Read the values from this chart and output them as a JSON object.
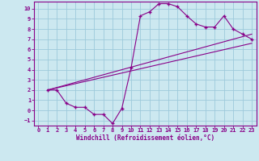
{
  "xlabel": "Windchill (Refroidissement éolien,°C)",
  "bg_color": "#cce8f0",
  "grid_color": "#9dcadb",
  "line_color": "#880088",
  "xlim": [
    -0.5,
    23.5
  ],
  "ylim": [
    -1.5,
    10.7
  ],
  "xticks": [
    0,
    1,
    2,
    3,
    4,
    5,
    6,
    7,
    8,
    9,
    10,
    11,
    12,
    13,
    14,
    15,
    16,
    17,
    18,
    19,
    20,
    21,
    22,
    23
  ],
  "yticks": [
    -1,
    0,
    1,
    2,
    3,
    4,
    5,
    6,
    7,
    8,
    9,
    10
  ],
  "curve_x": [
    1,
    2,
    3,
    4,
    5,
    6,
    7,
    8,
    9,
    10,
    11,
    12,
    13,
    14,
    15,
    16,
    17,
    18,
    19,
    20,
    21,
    22,
    23
  ],
  "curve_y": [
    2.0,
    2.0,
    0.7,
    0.3,
    0.3,
    -0.4,
    -0.4,
    -1.3,
    0.2,
    4.2,
    9.3,
    9.7,
    10.5,
    10.5,
    10.2,
    9.3,
    8.5,
    8.2,
    8.2,
    9.3,
    8.0,
    7.5,
    7.0
  ],
  "line1_x": [
    1,
    21,
    23
  ],
  "line1_y": [
    2.0,
    8.2,
    7.0
  ],
  "line2_x": [
    1,
    23
  ],
  "line2_y": [
    2.0,
    6.6
  ],
  "line3_x": [
    1,
    23
  ],
  "line3_y": [
    2.0,
    7.5
  ]
}
